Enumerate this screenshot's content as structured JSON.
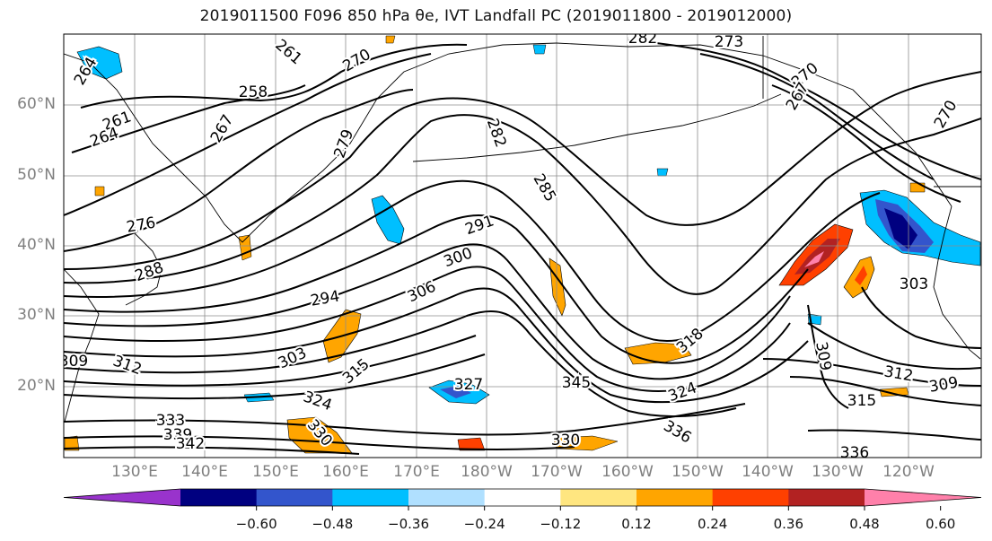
{
  "title": "2019011500 F096 850 hPa θe, IVT Landfall PC (2019011800 - 2019012000)",
  "lat_labels": [
    "60°N",
    "50°N",
    "40°N",
    "30°N",
    "20°N"
  ],
  "lon_labels": [
    "130°E",
    "140°E",
    "150°E",
    "160°E",
    "170°E",
    "180°W",
    "170°W",
    "160°W",
    "150°W",
    "140°W",
    "130°W",
    "120°W"
  ],
  "contour_labels": [
    "264",
    "261",
    "270",
    "258",
    "261",
    "264",
    "267",
    "279",
    "282",
    "285",
    "282",
    "273",
    "270",
    "267",
    "270",
    "276",
    "288",
    "291",
    "300",
    "294",
    "306",
    "303",
    "312",
    "315",
    "324",
    "327",
    "330",
    "333",
    "339",
    "342",
    "345",
    "318",
    "309",
    "324",
    "312",
    "309",
    "315",
    "336",
    "336",
    "330",
    "309",
    "303"
  ],
  "colorbar": {
    "tick_labels": [
      "−0.60",
      "−0.48",
      "−0.36",
      "−0.24",
      "−0.12",
      "0.12",
      "0.24",
      "0.36",
      "0.48",
      "0.60"
    ],
    "colors": [
      "#9933cc",
      "#000080",
      "#3355cc",
      "#00bfff",
      "#b0e0ff",
      "#ffffff",
      "#ffe680",
      "#ffa500",
      "#ff4000",
      "#b22222",
      "#ff80aa"
    ]
  }
}
